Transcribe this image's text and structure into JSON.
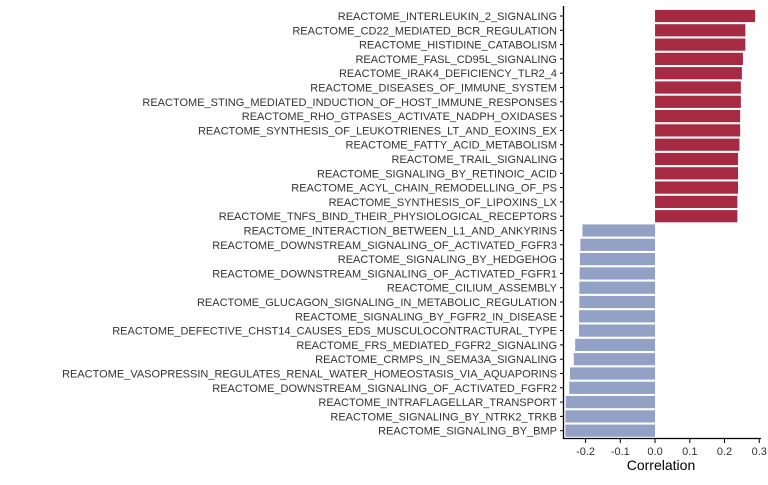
{
  "chart_data": {
    "type": "bar",
    "orientation": "horizontal",
    "title": "",
    "xlabel": "Correlation",
    "ylabel": "",
    "xlim": [
      -0.265,
      0.305
    ],
    "xticks": [
      -0.2,
      -0.1,
      0.0,
      0.1,
      0.2,
      0.3
    ],
    "xtick_labels": [
      "-0.2",
      "-0.1",
      "0.0",
      "0.1",
      "0.2",
      "0.3"
    ],
    "grid": false,
    "legend": "none",
    "colors": {
      "positive": "#A52A42",
      "negative": "#93A1C6",
      "axis": "#000000",
      "label": "#333333"
    },
    "categories": [
      "REACTOME_INTERLEUKIN_2_SIGNALING",
      "REACTOME_CD22_MEDIATED_BCR_REGULATION",
      "REACTOME_HISTIDINE_CATABOLISM",
      "REACTOME_FASL_CD95L_SIGNALING",
      "REACTOME_IRAK4_DEFICIENCY_TLR2_4",
      "REACTOME_DISEASES_OF_IMMUNE_SYSTEM",
      "REACTOME_STING_MEDIATED_INDUCTION_OF_HOST_IMMUNE_RESPONSES",
      "REACTOME_RHO_GTPASES_ACTIVATE_NADPH_OXIDASES",
      "REACTOME_SYNTHESIS_OF_LEUKOTRIENES_LT_AND_EOXINS_EX",
      "REACTOME_FATTY_ACID_METABOLISM",
      "REACTOME_TRAIL_SIGNALING",
      "REACTOME_SIGNALING_BY_RETINOIC_ACID",
      "REACTOME_ACYL_CHAIN_REMODELLING_OF_PS",
      "REACTOME_SYNTHESIS_OF_LIPOXINS_LX",
      "REACTOME_TNFS_BIND_THEIR_PHYSIOLOGICAL_RECEPTORS",
      "REACTOME_INTERACTION_BETWEEN_L1_AND_ANKYRINS",
      "REACTOME_DOWNSTREAM_SIGNALING_OF_ACTIVATED_FGFR3",
      "REACTOME_SIGNALING_BY_HEDGEHOG",
      "REACTOME_DOWNSTREAM_SIGNALING_OF_ACTIVATED_FGFR1",
      "REACTOME_CILIUM_ASSEMBLY",
      "REACTOME_GLUCAGON_SIGNALING_IN_METABOLIC_REGULATION",
      "REACTOME_SIGNALING_BY_FGFR2_IN_DISEASE",
      "REACTOME_DEFECTIVE_CHST14_CAUSES_EDS_MUSCULOCONTRACTURAL_TYPE",
      "REACTOME_FRS_MEDIATED_FGFR2_SIGNALING",
      "REACTOME_CRMPS_IN_SEMA3A_SIGNALING",
      "REACTOME_VASOPRESSIN_REGULATES_RENAL_WATER_HOMEOSTASIS_VIA_AQUAPORINS",
      "REACTOME_DOWNSTREAM_SIGNALING_OF_ACTIVATED_FGFR2",
      "REACTOME_INTRAFLAGELLAR_TRANSPORT",
      "REACTOME_SIGNALING_BY_NTRK2_TRKB",
      "REACTOME_SIGNALING_BY_BMP"
    ],
    "values": [
      0.288,
      0.26,
      0.26,
      0.253,
      0.25,
      0.247,
      0.247,
      0.245,
      0.245,
      0.243,
      0.239,
      0.239,
      0.239,
      0.237,
      0.237,
      -0.209,
      -0.215,
      -0.216,
      -0.217,
      -0.218,
      -0.218,
      -0.219,
      -0.219,
      -0.23,
      -0.234,
      -0.245,
      -0.247,
      -0.257,
      -0.258,
      -0.258
    ]
  }
}
